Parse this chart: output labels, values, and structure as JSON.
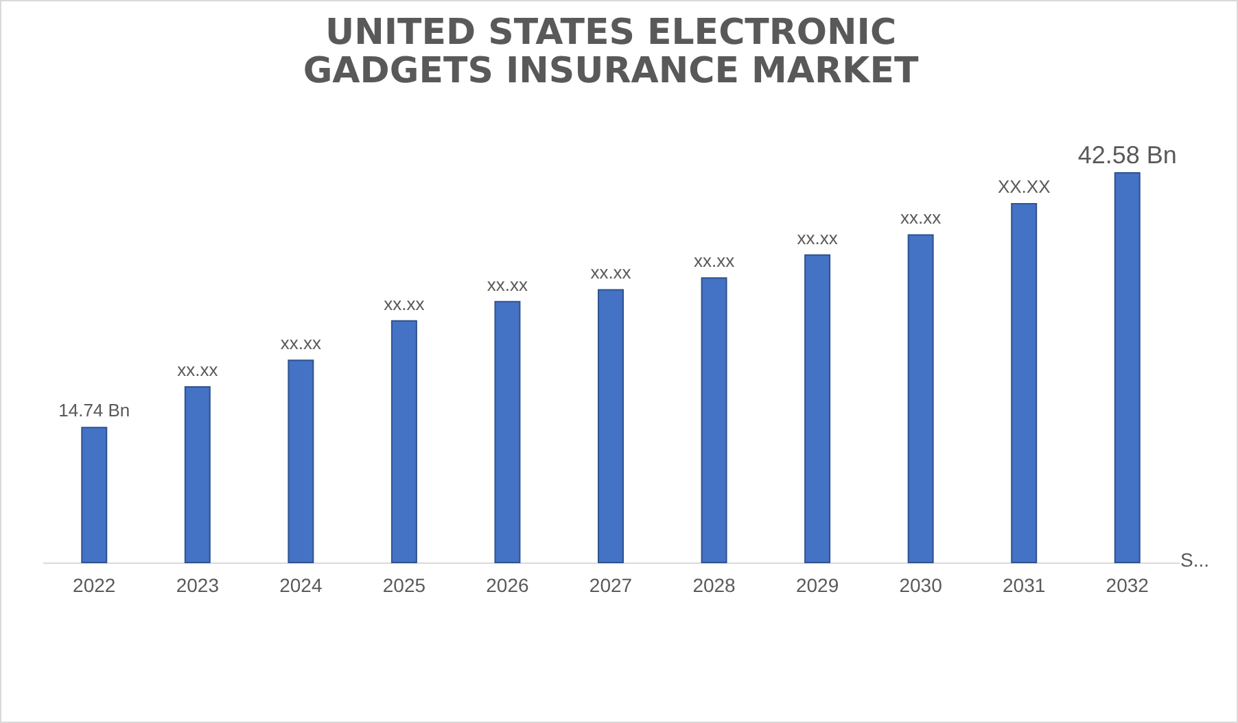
{
  "chart_data": {
    "type": "bar",
    "title": "UNITED STATES ELECTRONIC GADGETS INSURANCE MARKET",
    "categories": [
      "2022",
      "2023",
      "2024",
      "2025",
      "2026",
      "2027",
      "2028",
      "2029",
      "2030",
      "2031",
      "2032"
    ],
    "series": [
      {
        "color": "#4472c4",
        "values": [
          14.74,
          19.2,
          22.1,
          26.4,
          28.5,
          29.8,
          31.1,
          33.6,
          35.8,
          39.2,
          42.58
        ],
        "value_labels": [
          "14.74 Bn",
          "xx.xx",
          "xx.xx",
          "xx.xx",
          "xx.xx",
          "xx.xx",
          "xx.xx",
          "xx.xx",
          "xx.xx",
          "XX.XX",
          "42.58 Bn"
        ]
      }
    ],
    "annotations": [
      "S..."
    ]
  }
}
